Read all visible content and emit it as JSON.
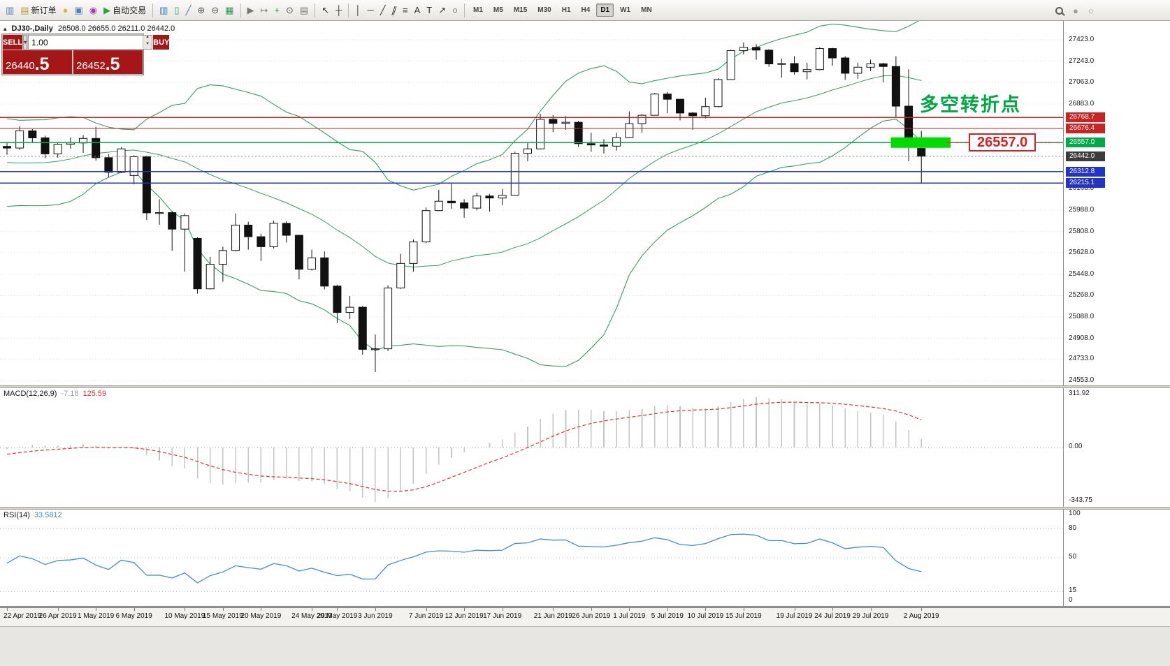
{
  "toolbar": {
    "groups": [
      {
        "items": [
          {
            "name": "new-chart-button",
            "glyph": "▥",
            "color": "#4f81bd"
          },
          {
            "name": "new-order-button",
            "glyph": "▤",
            "color": "#c2962e",
            "label": "新订单"
          },
          {
            "name": "metaeditor-button",
            "glyph": "●",
            "color": "#e3b53a"
          },
          {
            "name": "options-button",
            "glyph": "▣",
            "color": "#4f81bd"
          },
          {
            "name": "community-button",
            "glyph": "◉",
            "color": "#a23bb0"
          },
          {
            "name": "autotrading-button",
            "glyph": "▶",
            "color": "#2aa338",
            "label": "自动交易"
          }
        ]
      },
      {
        "sep": true
      },
      {
        "items": [
          {
            "name": "bar-chart-button",
            "glyph": "▥",
            "color": "#3a78c2"
          },
          {
            "name": "candlestick-chart-button",
            "glyph": "▯",
            "color": "#2a9d5c"
          },
          {
            "name": "line-chart-button",
            "glyph": "╱",
            "color": "#3a78c2"
          },
          {
            "name": "zoom-in-button",
            "glyph": "⊕",
            "color": "#555555"
          },
          {
            "name": "zoom-out-button",
            "glyph": "⊖",
            "color": "#555555"
          },
          {
            "name": "tile-windows-button",
            "glyph": "▦",
            "color": "#2a9d5c"
          }
        ]
      },
      {
        "sep": true
      },
      {
        "items": [
          {
            "name": "auto-scroll-button",
            "glyph": "▶",
            "color": "#7a7a7a"
          },
          {
            "name": "chart-shift-button",
            "glyph": "↦",
            "color": "#7a7a7a"
          },
          {
            "name": "indicators-button",
            "glyph": "+",
            "color": "#1f9f1f"
          },
          {
            "name": "periods-button",
            "glyph": "⊙",
            "color": "#555555"
          },
          {
            "name": "templates-button",
            "glyph": "▤",
            "color": "#7a7a7a"
          }
        ]
      },
      {
        "sep": true
      },
      {
        "items": [
          {
            "name": "cursor-button",
            "glyph": "↖",
            "color": "#333333"
          },
          {
            "name": "crosshair-button",
            "glyph": "┼",
            "color": "#333333"
          }
        ]
      },
      {
        "sep": true
      },
      {
        "items": [
          {
            "name": "vertical-line-button",
            "glyph": "│",
            "color": "#333333"
          },
          {
            "name": "horizontal-line-button",
            "glyph": "─",
            "color": "#333333"
          },
          {
            "name": "trendline-button",
            "glyph": "╱",
            "color": "#333333"
          },
          {
            "name": "channel-button",
            "glyph": "∥",
            "color": "#333333",
            "skew": true
          },
          {
            "name": "fibonacci-button",
            "glyph": "≡",
            "color": "#333333"
          },
          {
            "name": "text-button",
            "glyph": "A",
            "color": "#333333"
          },
          {
            "name": "label-button",
            "glyph": "T",
            "color": "#333333"
          },
          {
            "name": "arrow-tool-button",
            "glyph": "↗",
            "color": "#333333"
          },
          {
            "name": "shapes-button",
            "glyph": "○",
            "color": "#333333"
          }
        ]
      },
      {
        "sep": true
      }
    ],
    "timeframes": {
      "items": [
        "M1",
        "M5",
        "M15",
        "M30",
        "H1",
        "H4",
        "D1",
        "W1",
        "MN"
      ],
      "active": "D1"
    },
    "right_icons": [
      {
        "name": "quick-search-button",
        "search": true
      },
      {
        "name": "toolbar-circle-icon-1",
        "glyph": "●",
        "color": "#9a9a9a"
      },
      {
        "name": "toolbar-circle-icon-2",
        "glyph": "○",
        "color": "#9a9a9a"
      }
    ]
  },
  "symbol_info": {
    "title": "DJ30-,Daily",
    "ohlc": "26508.0 26655.0 26211.0 26442.0"
  },
  "order_panel": {
    "sell_label": "SELL",
    "buy_label": "BUY",
    "volume": "1.00",
    "bid_int": "26440",
    "bid_frac": ".5",
    "ask_int": "26452",
    "ask_frac": ".5"
  },
  "annotations": {
    "turning_point": "多空转折点",
    "price_callout": "26557.0"
  },
  "chart_data": {
    "type": "candlestick",
    "symbol": "DJ30-",
    "timeframe": "Daily",
    "price_axis": {
      "min": 24553,
      "max": 27470,
      "labels": [
        27423,
        27243,
        27063,
        26883,
        26168,
        25988,
        25808,
        25628,
        25448,
        25268,
        25088,
        24908,
        24733,
        24553
      ],
      "tags": [
        {
          "value": 26768.7,
          "color": "#cc2222"
        },
        {
          "value": 26676.4,
          "color": "#cc2222"
        },
        {
          "value": 26557.0,
          "color": "#00aa44"
        },
        {
          "value": 26442.0,
          "color": "#3c3c3c"
        },
        {
          "value": 26312.8,
          "color": "#2233cc"
        },
        {
          "value": 26215.1,
          "color": "#2233cc"
        }
      ]
    },
    "hlines": [
      {
        "value": 26768.7,
        "color": "#cc2222",
        "width": 1.3
      },
      {
        "value": 26676.4,
        "color": "#cc2222",
        "width": 1.3
      },
      {
        "value": 26557.0,
        "color": "#00aa44",
        "width": 1.3
      },
      {
        "value": 26442.0,
        "color": "#888888",
        "width": 1,
        "dash": "2,3"
      },
      {
        "value": 26312.8,
        "color": "#2233cc",
        "width": 1.3
      },
      {
        "value": 26215.1,
        "color": "#2233cc",
        "width": 1.3
      }
    ],
    "highlight_box": {
      "i0": 69.6,
      "i1": 74.3,
      "price": 26557,
      "color": "#00dc00"
    },
    "callout_price": 26557,
    "warmup_closes": [
      26680,
      26720,
      26580,
      26440,
      26300,
      26180,
      26060,
      26010,
      26110,
      26240,
      26350,
      26310,
      26400,
      26460,
      26510,
      26470,
      26520,
      26560,
      26530,
      26515
    ],
    "candles": [
      [
        26525,
        26560,
        26455,
        26511
      ],
      [
        26511,
        26695,
        26495,
        26656
      ],
      [
        26656,
        26670,
        26555,
        26597
      ],
      [
        26597,
        26615,
        26425,
        26462
      ],
      [
        26462,
        26560,
        26430,
        26543
      ],
      [
        26543,
        26600,
        26505,
        26554
      ],
      [
        26554,
        26620,
        26470,
        26592
      ],
      [
        26592,
        26690,
        26405,
        26430
      ],
      [
        26430,
        26460,
        26265,
        26307
      ],
      [
        26307,
        26520,
        26300,
        26504
      ],
      [
        26280,
        26450,
        26205,
        26438
      ],
      [
        26438,
        26445,
        25905,
        25965
      ],
      [
        25965,
        26080,
        25865,
        25967
      ],
      [
        25967,
        25980,
        25645,
        25828
      ],
      [
        25828,
        25960,
        25470,
        25942
      ],
      [
        25750,
        25760,
        25285,
        25325
      ],
      [
        25325,
        25595,
        25320,
        25532
      ],
      [
        25532,
        25680,
        25385,
        25648
      ],
      [
        25648,
        25960,
        25640,
        25862
      ],
      [
        25862,
        25890,
        25655,
        25764
      ],
      [
        25764,
        25790,
        25560,
        25680
      ],
      [
        25680,
        25900,
        25665,
        25877
      ],
      [
        25877,
        25895,
        25715,
        25776
      ],
      [
        25776,
        25780,
        25405,
        25490
      ],
      [
        25490,
        25655,
        25480,
        25586
      ],
      [
        25586,
        25640,
        25320,
        25348
      ],
      [
        25348,
        25360,
        25035,
        25126
      ],
      [
        25126,
        25265,
        25070,
        25170
      ],
      [
        25170,
        25180,
        24770,
        24815
      ],
      [
        24815,
        24940,
        24624,
        24820
      ],
      [
        24820,
        25355,
        24800,
        25332
      ],
      [
        25332,
        25620,
        25325,
        25539
      ],
      [
        25539,
        25740,
        25470,
        25720
      ],
      [
        25720,
        26010,
        25710,
        25984
      ],
      [
        25984,
        26160,
        25980,
        26063
      ],
      [
        26063,
        26210,
        26000,
        26049
      ],
      [
        26049,
        26080,
        25925,
        26005
      ],
      [
        26005,
        26135,
        25985,
        26107
      ],
      [
        26107,
        26125,
        25975,
        26090
      ],
      [
        26090,
        26165,
        26030,
        26113
      ],
      [
        26113,
        26480,
        26110,
        26466
      ],
      [
        26466,
        26555,
        26400,
        26504
      ],
      [
        26504,
        26800,
        26500,
        26753
      ],
      [
        26753,
        26790,
        26645,
        26719
      ],
      [
        26719,
        26780,
        26665,
        26728
      ],
      [
        26728,
        26740,
        26520,
        26548
      ],
      [
        26548,
        26640,
        26480,
        26537
      ],
      [
        26537,
        26585,
        26465,
        26527
      ],
      [
        26527,
        26640,
        26490,
        26600
      ],
      [
        26600,
        26820,
        26595,
        26717
      ],
      [
        26717,
        26800,
        26640,
        26787
      ],
      [
        26787,
        26975,
        26785,
        26966
      ],
      [
        26966,
        26985,
        26805,
        26922
      ],
      [
        26922,
        26925,
        26745,
        26806
      ],
      [
        26806,
        26815,
        26665,
        26783
      ],
      [
        26783,
        26935,
        26760,
        26860
      ],
      [
        26860,
        27100,
        26855,
        27088
      ],
      [
        27088,
        27340,
        27085,
        27332
      ],
      [
        27332,
        27400,
        27300,
        27359
      ],
      [
        27359,
        27385,
        27255,
        27336
      ],
      [
        27336,
        27345,
        27195,
        27220
      ],
      [
        27220,
        27265,
        27105,
        27223
      ],
      [
        27223,
        27285,
        27130,
        27154
      ],
      [
        27154,
        27230,
        27090,
        27172
      ],
      [
        27172,
        27360,
        27165,
        27349
      ],
      [
        27349,
        27355,
        27205,
        27270
      ],
      [
        27270,
        27285,
        27085,
        27141
      ],
      [
        27141,
        27230,
        27095,
        27192
      ],
      [
        27192,
        27255,
        27160,
        27221
      ],
      [
        27221,
        27230,
        27065,
        27198
      ],
      [
        27198,
        27285,
        26770,
        26864
      ],
      [
        26864,
        27175,
        26400,
        26583
      ],
      [
        26508,
        26655,
        26211,
        26442
      ]
    ],
    "time_axis": [
      {
        "t": "22 Apr 2019",
        "i": 0
      },
      {
        "t": "26 Apr 2019",
        "i": 4
      },
      {
        "t": "1 May 2019",
        "i": 7
      },
      {
        "t": "6 May 2019",
        "i": 10
      },
      {
        "t": "10 May 2019",
        "i": 14
      },
      {
        "t": "15 May 2019",
        "i": 17
      },
      {
        "t": "20 May 2019",
        "i": 20
      },
      {
        "t": "24 May 2019",
        "i": 24
      },
      {
        "t": "29 May 2019",
        "i": 26
      },
      {
        "t": "3 Jun 2019",
        "i": 29
      },
      {
        "t": "7 Jun 2019",
        "i": 33
      },
      {
        "t": "12 Jun 2019",
        "i": 36
      },
      {
        "t": "17 Jun 2019",
        "i": 39
      },
      {
        "t": "21 Jun 2019",
        "i": 43
      },
      {
        "t": "26 Jun 2019",
        "i": 46
      },
      {
        "t": "1 Jul 2019",
        "i": 49
      },
      {
        "t": "5 Jul 2019",
        "i": 52
      },
      {
        "t": "10 Jul 2019",
        "i": 55
      },
      {
        "t": "15 Jul 2019",
        "i": 58
      },
      {
        "t": "19 Jul 2019",
        "i": 62
      },
      {
        "t": "24 Jul 2019",
        "i": 65
      },
      {
        "t": "29 Jul 2019",
        "i": 68
      },
      {
        "t": "2 Aug 2019",
        "i": 72
      }
    ],
    "indicators": {
      "bollinger": {
        "period": 20,
        "deviation": 2,
        "color": "#33a05a"
      },
      "macd": {
        "name": "MACD(12,26,9)",
        "value_main": "-7.18",
        "value_signal": "125.59",
        "axis": [
          "311.92",
          "0.00",
          "-343.75"
        ],
        "bar_color": "#c4c4c4",
        "signal_color": "#e03030"
      },
      "rsi": {
        "name": "RSI(14)",
        "value": "33.5812",
        "levels": [
          80,
          50,
          15
        ],
        "axis": [
          100,
          80,
          50,
          15,
          0
        ],
        "line_color": "#3f8fd2"
      }
    }
  }
}
